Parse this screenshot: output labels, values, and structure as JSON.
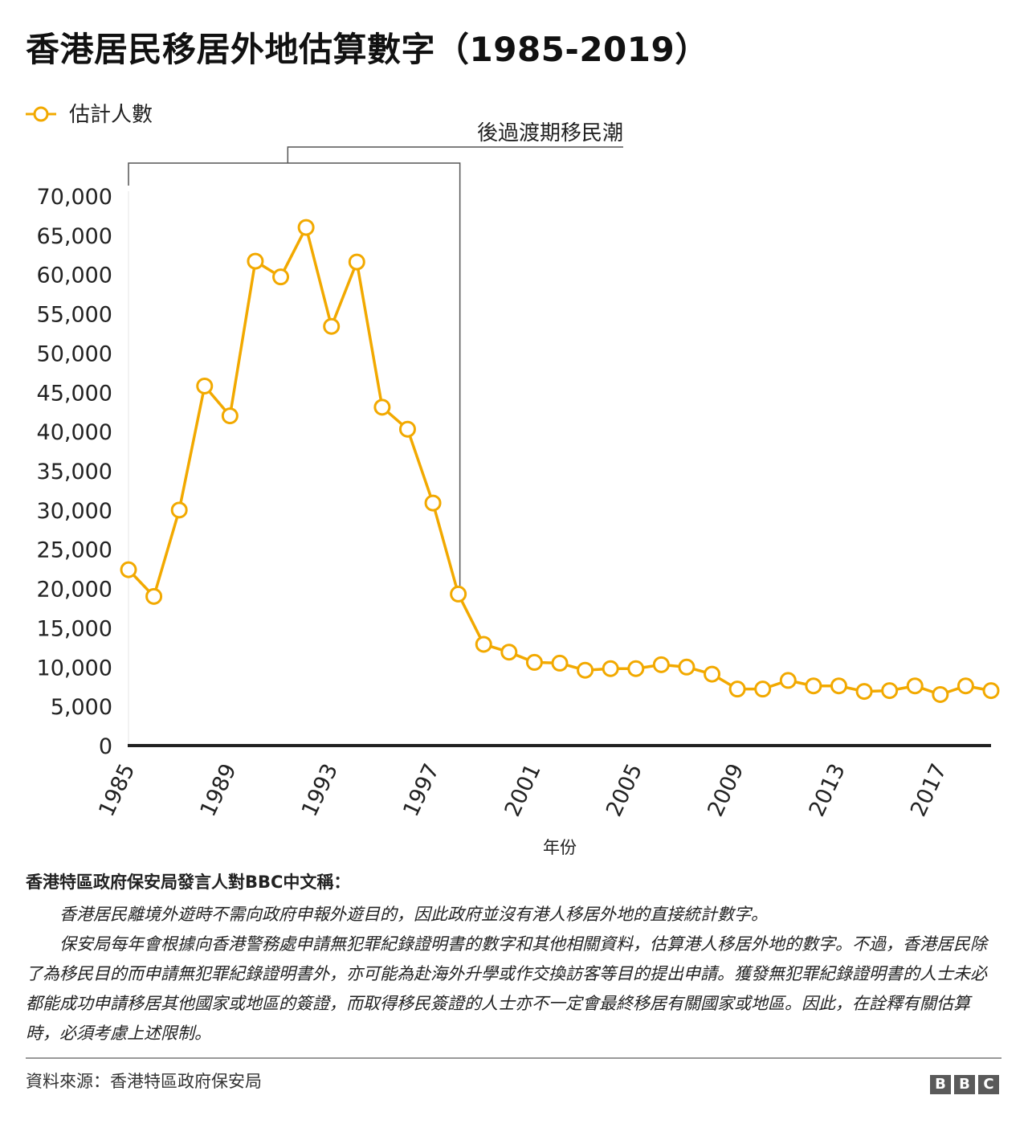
{
  "title": "香港居民移居外地估算數字（1985-2019）",
  "chart_data": {
    "type": "line",
    "legend": {
      "label": "估計人數",
      "placement": "top-left"
    },
    "annotation": {
      "label": "後過渡期移民潮",
      "range": [
        "1985",
        "1997"
      ]
    },
    "xlabel": "年份",
    "ylabel": "",
    "ylim": [
      0,
      70000
    ],
    "yticks": [
      "0",
      "5,000",
      "10,000",
      "15,000",
      "20,000",
      "25,000",
      "30,000",
      "35,000",
      "40,000",
      "45,000",
      "50,000",
      "55,000",
      "60,000",
      "65,000",
      "70,000"
    ],
    "xticks": [
      "1985",
      "1989",
      "1993",
      "1997",
      "2001",
      "2005",
      "2009",
      "2013",
      "2017"
    ],
    "x": [
      1985,
      1986,
      1987,
      1988,
      1989,
      1990,
      1991,
      1992,
      1993,
      1994,
      1995,
      1996,
      1997,
      1998,
      1999,
      2000,
      2001,
      2002,
      2003,
      2004,
      2005,
      2006,
      2007,
      2008,
      2009,
      2010,
      2011,
      2012,
      2013,
      2014,
      2015,
      2016,
      2017,
      2018,
      2019
    ],
    "series": [
      {
        "values": [
          22400,
          19000,
          30000,
          45800,
          42000,
          61700,
          59700,
          66000,
          53400,
          61600,
          43100,
          40300,
          30900,
          19300,
          12900,
          11900,
          10600,
          10500,
          9600,
          9800,
          9800,
          10300,
          10000,
          9100,
          7200,
          7200,
          8300,
          7600,
          7600,
          6900,
          7000,
          7600,
          6500,
          7600,
          7000
        ]
      }
    ],
    "colors": {
      "line": "#F2A900",
      "marker_fill": "#ffffff",
      "axis": "#222222",
      "bracket": "#555555"
    }
  },
  "note": {
    "heading": "香港特區政府保安局發言人對BBC中文稱：",
    "paragraphs": [
      "香港居民離境外遊時不需向政府申報外遊目的，因此政府並沒有港人移居外地的直接統計數字。",
      "保安局每年會根據向香港警務處申請無犯罪紀錄證明書的數字和其他相關資料，估算港人移居外地的數字。不過，香港居民除了為移民目的而申請無犯罪紀錄證明書外，亦可能為赴海外升學或作交換訪客等目的提出申請。獲發無犯罪紀錄證明書的人士未必都能成功申請移居其他國家或地區的簽證，而取得移民簽證的人士亦不一定會最終移居有關國家或地區。因此，在詮釋有關估算時，必須考慮上述限制。"
    ]
  },
  "source": "資料來源：香港特區政府保安局",
  "logo": {
    "letters": [
      "B",
      "B",
      "C"
    ]
  }
}
